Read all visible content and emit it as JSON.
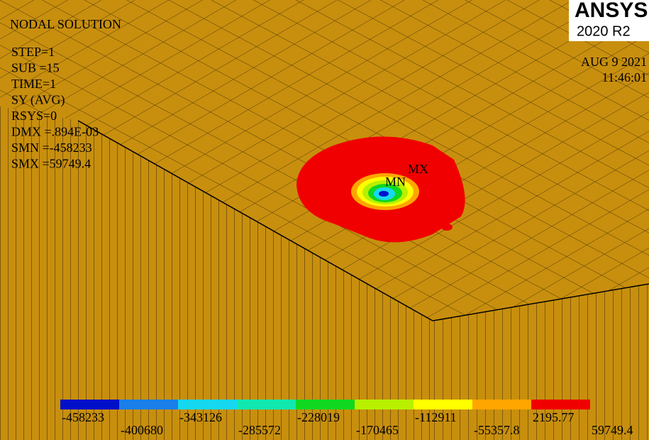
{
  "logo": {
    "brand": "ANSYS",
    "version": "2020 R2"
  },
  "header": {
    "title": "NODAL SOLUTION",
    "date": "AUG  9 2021",
    "time": "11:46:01"
  },
  "info": [
    "STEP=1",
    "SUB =15",
    "TIME=1",
    "SY       (AVG)",
    "RSYS=0",
    "DMX =.894E-03",
    "SMN =-458233",
    "SMX =59749.4"
  ],
  "markers": {
    "min": "MN",
    "max": "MX"
  },
  "legend": {
    "colors": [
      "#0010c8",
      "#1a7fe8",
      "#16d8f0",
      "#10e8b0",
      "#10d820",
      "#b8f000",
      "#ffff00",
      "#ffa500",
      "#f00000"
    ],
    "labels": [
      "-458233",
      "-400680",
      "-343126",
      "-285572",
      "-228019",
      "-170465",
      "-112911",
      "-55357.8",
      "2195.77",
      "59749.4"
    ]
  }
}
